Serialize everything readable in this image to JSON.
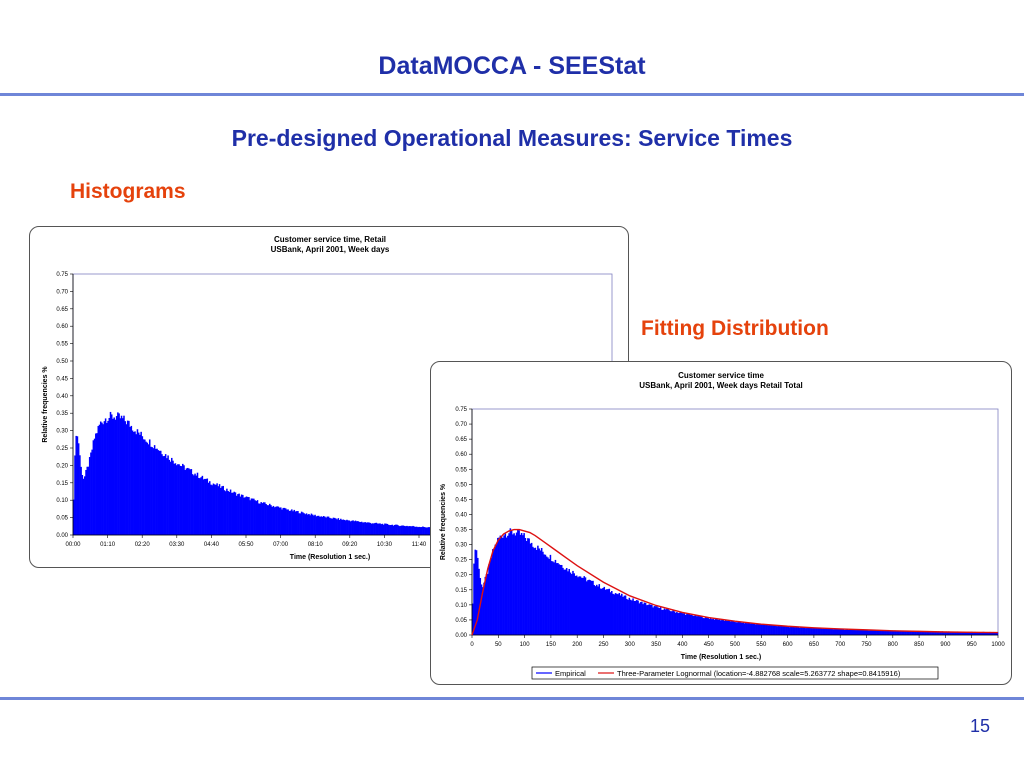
{
  "slide": {
    "title": "DataMOCCA - SEEStat",
    "subtitle": "Pre-designed Operational Measures: Service Times",
    "section_histograms": "Histograms",
    "section_fitting": "Fitting Distribution",
    "page_number": "15"
  },
  "colors": {
    "title": "#1f2fa8",
    "section": "#e5420c",
    "rule": "#6f86d8",
    "bars": "#0000ff",
    "fit": "#dd1111"
  },
  "chart_data": [
    {
      "type": "bar",
      "title": "Customer service time, Retail",
      "subtitle": "USBank, April 2001, Week days",
      "xlabel": "Time (Resolution 1 sec.)",
      "ylabel": "Relative frequencies %",
      "ylim": [
        0,
        0.75
      ],
      "yticks": [
        "0.00",
        "0.05",
        "0.10",
        "0.15",
        "0.20",
        "0.25",
        "0.30",
        "0.35",
        "0.40",
        "0.45",
        "0.50",
        "0.55",
        "0.60",
        "0.65",
        "0.70",
        "0.75"
      ],
      "xticks": [
        "00:00",
        "01:10",
        "02:20",
        "03:30",
        "04:40",
        "05:50",
        "07:00",
        "08:10",
        "09:20",
        "10:30",
        "11:40"
      ],
      "x_unit": "seconds",
      "xlim": [
        0,
        1000
      ],
      "grid": false,
      "series": [
        {
          "x": [
            0,
            5,
            10,
            15,
            20,
            30,
            40,
            50,
            60,
            70,
            80,
            90,
            100,
            110,
            120,
            140,
            160,
            180,
            200,
            250,
            300,
            350,
            400,
            450,
            500,
            550,
            600,
            650,
            700,
            750,
            800,
            900,
            1000
          ],
          "values": [
            0.05,
            0.3,
            0.27,
            0.19,
            0.16,
            0.21,
            0.28,
            0.32,
            0.335,
            0.34,
            0.34,
            0.335,
            0.325,
            0.31,
            0.295,
            0.27,
            0.245,
            0.22,
            0.2,
            0.155,
            0.12,
            0.092,
            0.072,
            0.056,
            0.044,
            0.035,
            0.028,
            0.023,
            0.019,
            0.016,
            0.014,
            0.011,
            0.009
          ]
        }
      ]
    },
    {
      "type": "bar",
      "title": "Customer service time",
      "subtitle": "USBank, April 2001, Week days Retail Total",
      "xlabel": "Time (Resolution 1 sec.)",
      "ylabel": "Relative frequencies %",
      "ylim": [
        0,
        0.75
      ],
      "xlim": [
        0,
        1000
      ],
      "yticks": [
        "0.00",
        "0.05",
        "0.10",
        "0.15",
        "0.20",
        "0.25",
        "0.30",
        "0.35",
        "0.40",
        "0.45",
        "0.50",
        "0.55",
        "0.60",
        "0.65",
        "0.70",
        "0.75"
      ],
      "xticks": [
        "0",
        "50",
        "100",
        "150",
        "200",
        "250",
        "300",
        "350",
        "400",
        "450",
        "500",
        "550",
        "600",
        "650",
        "700",
        "750",
        "800",
        "850",
        "900",
        "950",
        "1000"
      ],
      "grid": false,
      "legend": {
        "position": "bottom",
        "entries": [
          "Empirical",
          "Three-Parameter Lognormal (location=-4.882768 scale=5.263772 shape=0.8415916)"
        ]
      },
      "series": [
        {
          "name": "Empirical",
          "x": [
            0,
            5,
            10,
            15,
            20,
            30,
            40,
            50,
            60,
            70,
            80,
            90,
            100,
            110,
            120,
            140,
            160,
            180,
            200,
            250,
            300,
            350,
            400,
            450,
            500,
            550,
            600,
            650,
            700,
            750,
            800,
            900,
            1000
          ],
          "values": [
            0.05,
            0.3,
            0.27,
            0.19,
            0.16,
            0.21,
            0.28,
            0.32,
            0.335,
            0.34,
            0.34,
            0.335,
            0.325,
            0.31,
            0.295,
            0.27,
            0.245,
            0.22,
            0.2,
            0.155,
            0.12,
            0.092,
            0.072,
            0.056,
            0.044,
            0.035,
            0.028,
            0.023,
            0.019,
            0.016,
            0.014,
            0.011,
            0.009
          ]
        },
        {
          "name": "Three-Parameter Lognormal (location=-4.882768 scale=5.263772 shape=0.8415916)",
          "x": [
            0,
            10,
            20,
            30,
            40,
            50,
            60,
            70,
            80,
            90,
            100,
            110,
            120,
            140,
            160,
            180,
            200,
            250,
            300,
            350,
            400,
            450,
            500,
            550,
            600,
            650,
            700,
            750,
            800,
            850,
            900,
            950,
            1000
          ],
          "values": [
            0.0,
            0.05,
            0.14,
            0.22,
            0.28,
            0.315,
            0.335,
            0.345,
            0.35,
            0.35,
            0.345,
            0.34,
            0.33,
            0.305,
            0.28,
            0.255,
            0.23,
            0.175,
            0.13,
            0.098,
            0.075,
            0.058,
            0.046,
            0.036,
            0.029,
            0.024,
            0.02,
            0.017,
            0.014,
            0.012,
            0.01,
            0.009,
            0.008
          ]
        }
      ]
    }
  ]
}
